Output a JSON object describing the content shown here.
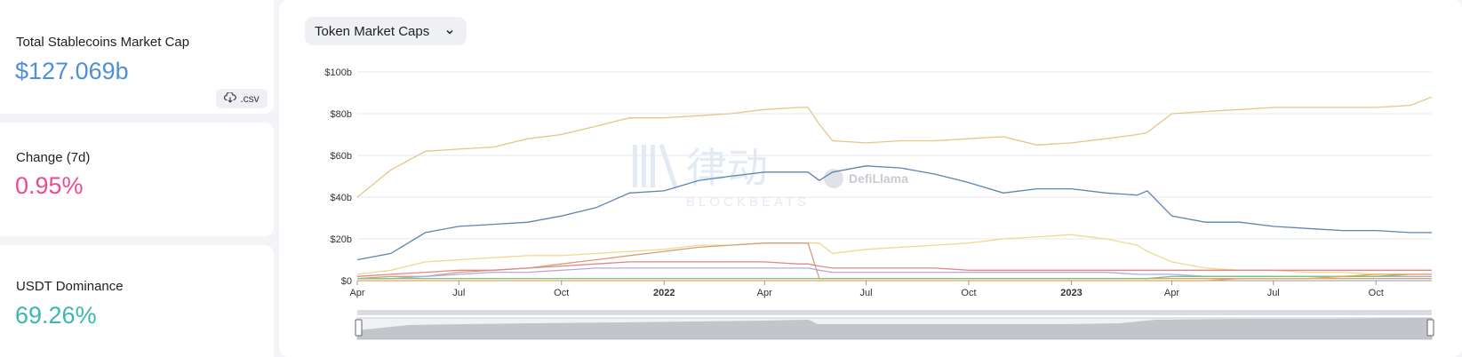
{
  "stats": {
    "market_cap": {
      "label": "Total Stablecoins Market Cap",
      "value": "$127.069b",
      "color": "#4f8fd9"
    },
    "change": {
      "label": "Change (7d)",
      "value": "0.95%",
      "color": "#e94c8f"
    },
    "dominance": {
      "label": "USDT Dominance",
      "value": "69.26%",
      "color": "#3bb6b2"
    }
  },
  "csv": {
    "label": ".csv",
    "icon": "cloud-download-icon"
  },
  "dropdown": {
    "label": "Token Market Caps",
    "icon": "chevron-down-icon"
  },
  "watermarks": {
    "defillama": "DefiLlama",
    "logo": "律动",
    "logo_sub": "BLOCKBEATS"
  },
  "chart_data": {
    "type": "line",
    "x_tick_labels": [
      "Apr",
      "Jul",
      "Oct",
      "2022",
      "Apr",
      "Jul",
      "Oct",
      "2023",
      "Apr",
      "Jul",
      "Oct"
    ],
    "x_tick_bold": [
      false,
      false,
      false,
      true,
      false,
      false,
      false,
      true,
      false,
      false,
      false
    ],
    "x": [
      "2021-04-01",
      "2021-05-01",
      "2021-06-01",
      "2021-07-01",
      "2021-08-01",
      "2021-09-01",
      "2021-10-01",
      "2021-11-01",
      "2021-12-01",
      "2022-01-01",
      "2022-02-01",
      "2022-03-01",
      "2022-04-01",
      "2022-05-01",
      "2022-05-10",
      "2022-05-20",
      "2022-06-01",
      "2022-07-01",
      "2022-08-01",
      "2022-09-01",
      "2022-10-01",
      "2022-11-01",
      "2022-12-01",
      "2023-01-01",
      "2023-02-01",
      "2023-03-01",
      "2023-03-10",
      "2023-04-01",
      "2023-05-01",
      "2023-06-01",
      "2023-07-01",
      "2023-08-01",
      "2023-09-01",
      "2023-10-01",
      "2023-11-01",
      "2023-11-20"
    ],
    "y_tick_labels": [
      "$0",
      "$20b",
      "$40b",
      "$60b",
      "$80b",
      "$100b"
    ],
    "ylim": [
      0,
      100
    ],
    "y_unit": "b",
    "grid": true,
    "series": [
      {
        "color": "#e8c48a",
        "values": [
          40,
          53,
          62,
          63,
          64,
          68,
          70,
          74,
          78,
          78,
          79,
          80,
          82,
          83,
          83,
          75,
          67,
          66,
          67,
          67,
          68,
          69,
          65,
          66,
          68,
          70,
          71,
          80,
          81,
          82,
          83,
          83,
          83,
          83,
          84,
          88
        ]
      },
      {
        "color": "#5b86b0",
        "values": [
          10,
          13,
          23,
          26,
          27,
          28,
          31,
          35,
          42,
          43,
          48,
          50,
          52,
          52,
          52,
          48,
          52,
          55,
          54,
          51,
          47,
          42,
          44,
          44,
          42,
          41,
          43,
          31,
          28,
          28,
          26,
          25,
          24,
          24,
          23,
          23
        ]
      },
      {
        "color": "#f0d98c",
        "values": [
          3,
          5,
          9,
          10,
          11,
          12,
          12,
          13,
          14,
          15,
          17,
          17,
          18,
          18,
          18,
          18,
          13,
          15,
          16,
          17,
          18,
          20,
          21,
          22,
          20,
          17,
          14,
          9,
          6,
          5,
          5,
          4,
          4,
          3,
          3,
          3
        ]
      },
      {
        "color": "#d4a07a",
        "values": [
          1,
          2,
          2,
          4,
          5,
          6,
          8,
          10,
          12,
          14,
          16,
          17,
          18,
          18,
          18,
          1,
          1,
          1,
          1,
          1,
          1,
          1,
          1,
          1,
          1,
          1,
          1,
          1,
          1,
          1,
          1,
          1,
          1,
          1,
          1,
          1
        ]
      },
      {
        "color": "#e0868c",
        "values": [
          2,
          3,
          4,
          5,
          5,
          6,
          7,
          8,
          9,
          9,
          9,
          9,
          9,
          8,
          8,
          7,
          6,
          6,
          6,
          6,
          5,
          5,
          5,
          5,
          5,
          5,
          5,
          5,
          5,
          5,
          5,
          5,
          5,
          5,
          5,
          5
        ]
      },
      {
        "color": "#b8a6d9",
        "values": [
          1,
          1,
          2,
          3,
          4,
          4,
          5,
          6,
          6,
          6,
          6,
          6,
          6,
          6,
          6,
          5,
          4,
          4,
          4,
          4,
          4,
          4,
          4,
          4,
          4,
          3,
          3,
          3,
          2,
          2,
          2,
          2,
          2,
          2,
          2,
          2
        ]
      },
      {
        "color": "#6fc48f",
        "values": [
          1,
          1,
          1,
          1,
          1,
          1,
          1,
          1,
          1,
          1,
          1,
          1,
          1,
          1,
          1,
          1,
          1,
          1,
          1,
          1,
          1,
          1,
          1,
          1,
          1,
          1,
          1,
          2,
          2,
          2,
          2,
          2,
          2,
          2,
          3,
          3
        ]
      },
      {
        "color": "#f0a24a",
        "values": [
          0,
          0,
          0,
          0,
          0,
          0,
          0,
          0,
          0,
          0,
          0,
          0,
          0,
          0,
          0,
          0,
          0,
          0,
          0,
          0,
          0,
          0,
          0,
          0,
          0,
          0,
          0,
          0,
          0,
          1,
          1,
          1,
          2,
          3,
          3,
          3
        ]
      }
    ]
  }
}
